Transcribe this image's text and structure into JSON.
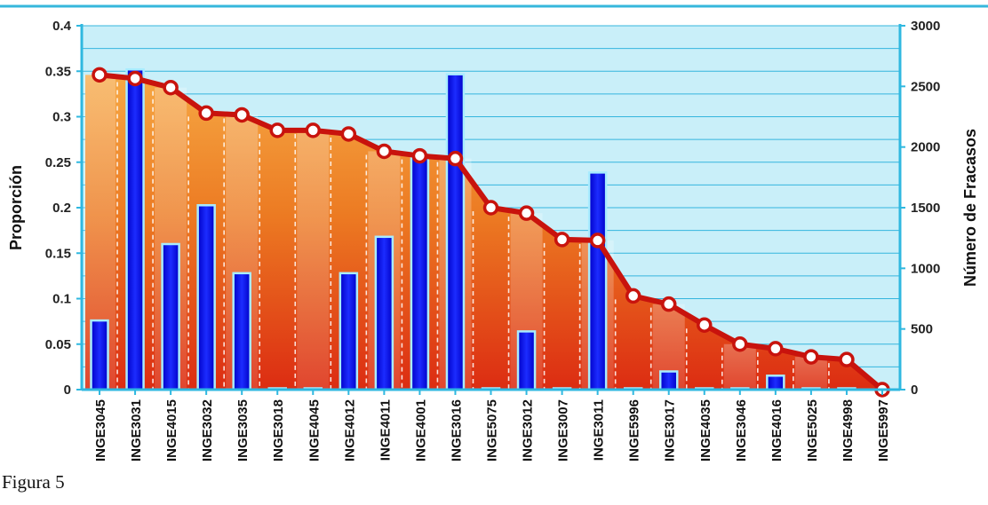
{
  "caption": "Figura 5",
  "chart_data": {
    "type": "bar+line",
    "categories": [
      "INGE3045",
      "INGE3031",
      "INGE4015",
      "INGE3032",
      "INGE3035",
      "INGE3018",
      "INGE4045",
      "INGE4012",
      "INGE4011",
      "INGE4001",
      "INGE3016",
      "INGE5075",
      "INGE3012",
      "INGE3007",
      "INGE3011",
      "INGE5996",
      "INGE3017",
      "INGE4035",
      "INGE3046",
      "INGE4016",
      "INGE5025",
      "INGE4998",
      "INGE5997"
    ],
    "series": [
      {
        "axis": "right",
        "kind": "bar",
        "values": [
          570,
          2640,
          1200,
          1520,
          960,
          10,
          10,
          960,
          1260,
          1940,
          2600,
          5,
          480,
          5,
          1790,
          5,
          150,
          10,
          5,
          115,
          5,
          5,
          0
        ]
      },
      {
        "axis": "left",
        "kind": "line-area",
        "values": [
          0.346,
          0.342,
          0.332,
          0.304,
          0.302,
          0.285,
          0.285,
          0.281,
          0.262,
          0.257,
          0.254,
          0.2,
          0.194,
          0.165,
          0.164,
          0.103,
          0.094,
          0.071,
          0.05,
          0.045,
          0.036,
          0.033,
          0.0
        ]
      }
    ],
    "ylabel": "Proporción",
    "y2label": "Número de Fracasos",
    "ylim": [
      0,
      0.4
    ],
    "y2lim": [
      0,
      3000
    ],
    "yticks": [
      "0",
      "0.05",
      "0.1",
      "0.15",
      "0.2",
      "0.25",
      "0.3",
      "0.35",
      "0.4"
    ],
    "y2ticks": [
      "0",
      "500",
      "1000",
      "1500",
      "2000",
      "2500",
      "3000"
    ],
    "grid": true,
    "colors": {
      "bar": "#0a0aff",
      "line": "#d01a14",
      "marker": "#ffffff",
      "area_top": "#f39a2e",
      "area_bottom": "#dd2a10",
      "background": "#c9eff9",
      "axis": "#2fb8e0"
    }
  }
}
